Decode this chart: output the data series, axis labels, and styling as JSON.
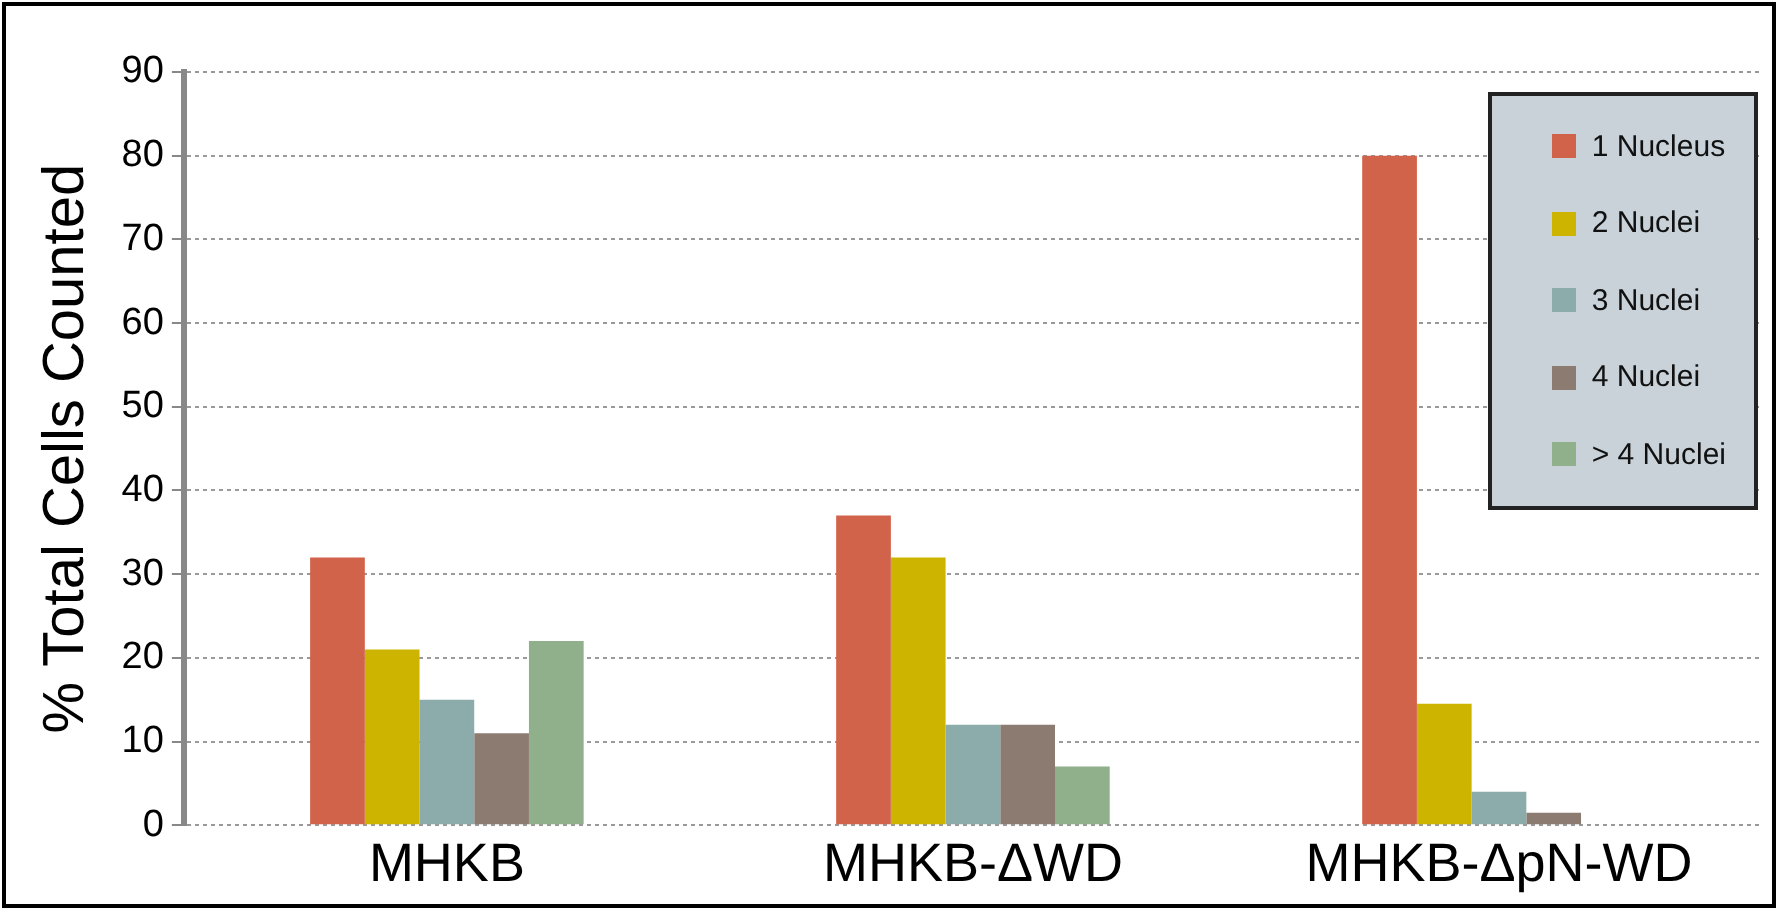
{
  "chart_data": {
    "type": "bar",
    "ylabel": "% Total Cells Counted",
    "categories": [
      "MHKB",
      "MHKB-ΔWD",
      "MHKB-ΔpN-WD"
    ],
    "series": [
      {
        "name": "1 Nucleus",
        "color": "#d1634a",
        "values": [
          32,
          37,
          80
        ]
      },
      {
        "name": "2 Nuclei",
        "color": "#cdb400",
        "values": [
          21,
          32,
          14.5
        ]
      },
      {
        "name": "3 Nuclei",
        "color": "#8cabab",
        "values": [
          15,
          12,
          4
        ]
      },
      {
        "name": "4 Nuclei",
        "color": "#8c7b70",
        "values": [
          11,
          12,
          1.5
        ]
      },
      {
        "name": "> 4 Nuclei",
        "color": "#90b08c",
        "values": [
          22,
          7,
          0
        ]
      }
    ],
    "ylim": [
      0,
      90
    ],
    "yticks": [
      0,
      10,
      20,
      30,
      40,
      50,
      60,
      70,
      80,
      90
    ],
    "grid": "y",
    "legend": "top right"
  }
}
